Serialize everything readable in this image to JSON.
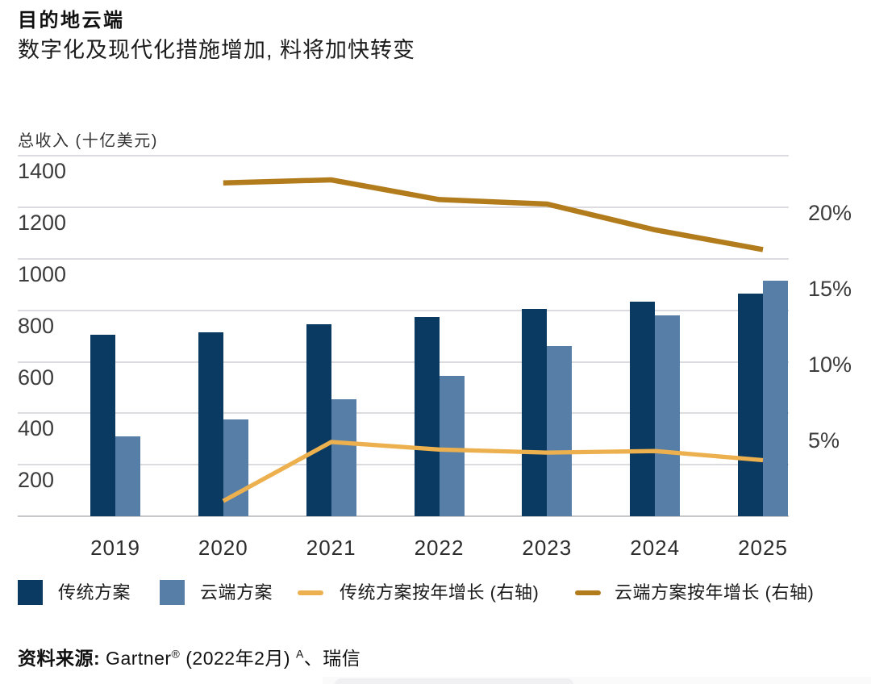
{
  "header": {
    "title": "目的地云端",
    "subtitle": "数字化及现代化措施增加, 料将加快转变"
  },
  "chart_data": {
    "type": "bar+line combo",
    "title": "目的地云端",
    "subtitle": "数字化及现代化措施增加, 料将加快转变",
    "categories": [
      "2019",
      "2020",
      "2021",
      "2022",
      "2023",
      "2024",
      "2025"
    ],
    "left_axis": {
      "title": "总收入 (十亿美元)",
      "ticks": [
        1400,
        1200,
        1000,
        800,
        600,
        400,
        200
      ],
      "range": [
        0,
        1400
      ],
      "grid": true
    },
    "right_axis": {
      "tick_labels": [
        "20%",
        "15%",
        "10%",
        "5%"
      ],
      "tick_values": [
        20,
        15,
        10,
        5
      ],
      "range": [
        0,
        23.8
      ],
      "unit": "%"
    },
    "legend_position": "bottom",
    "series": [
      {
        "name": "传统方案",
        "type": "bar",
        "axis": "left",
        "color": "#0A3A62",
        "values": [
          705,
          715,
          745,
          775,
          805,
          835,
          865
        ]
      },
      {
        "name": "云端方案",
        "type": "bar",
        "axis": "left",
        "color": "#567EA6",
        "values": [
          310,
          375,
          455,
          545,
          660,
          780,
          915
        ]
      },
      {
        "name": "传统方案按年增长 (右轴)",
        "type": "line",
        "axis": "right",
        "color": "#EDB04E",
        "values": [
          null,
          1.0,
          4.9,
          4.4,
          4.2,
          4.3,
          3.7
        ]
      },
      {
        "name": "云端方案按年增长 (右轴)",
        "type": "line",
        "axis": "right",
        "color": "#B27C1D",
        "values": [
          null,
          22.0,
          22.2,
          20.9,
          20.6,
          18.9,
          17.6
        ]
      }
    ]
  },
  "legend": [
    {
      "label": "传统方案",
      "swatch": "square",
      "color": "#0A3A62"
    },
    {
      "label": "云端方案",
      "swatch": "square",
      "color": "#567EA6"
    },
    {
      "label": "传统方案按年增长 (右轴)",
      "swatch": "line",
      "color": "#EDB04E"
    },
    {
      "label": "云端方案按年增长 (右轴)",
      "swatch": "line",
      "color": "#B27C1D"
    }
  ],
  "footer": {
    "source_label": "资料来源:",
    "source_name": " Gartner",
    "sup_reg": "®",
    "source_date": " (2022年2月) ",
    "sup_note": "A",
    "source_extra": "、瑞信"
  }
}
